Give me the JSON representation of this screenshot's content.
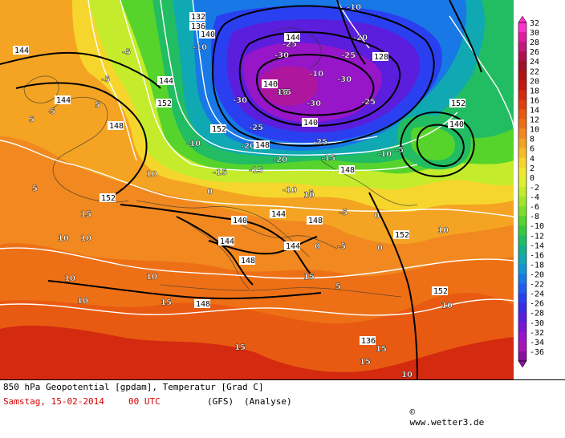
{
  "map": {
    "temperature_labels": [
      "-35",
      "-30",
      "-30",
      "-30",
      "-30",
      "-25",
      "-25",
      "-25",
      "-25",
      "-25",
      "-20",
      "-20",
      "-20",
      "-15",
      "-15",
      "-15",
      "-10",
      "-10",
      "-10",
      "-10",
      "-10",
      "-10",
      "-5",
      "-5",
      "-5",
      "-5",
      "-5",
      "-5",
      "0",
      "0",
      "0",
      "0",
      "5",
      "5",
      "5",
      "5",
      "5",
      "10",
      "10",
      "10",
      "10",
      "10",
      "10",
      "10",
      "10",
      "10",
      "10",
      "15",
      "15",
      "15",
      "15",
      "15",
      "15",
      "15"
    ],
    "geopotential_labels": [
      "128",
      "132",
      "136",
      "136",
      "140",
      "140",
      "140",
      "140",
      "140",
      "144",
      "144",
      "144",
      "144",
      "144",
      "144",
      "144",
      "148",
      "148",
      "148",
      "148",
      "148",
      "148",
      "152",
      "152",
      "152",
      "152",
      "152",
      "152"
    ]
  },
  "legend": {
    "values": [
      "32",
      "30",
      "28",
      "26",
      "24",
      "22",
      "20",
      "18",
      "16",
      "14",
      "12",
      "10",
      "8",
      "6",
      "4",
      "2",
      "0",
      "-2",
      "-4",
      "-6",
      "-8",
      "-10",
      "-12",
      "-14",
      "-16",
      "-18",
      "-20",
      "-22",
      "-24",
      "-26",
      "-28",
      "-30",
      "-32",
      "-34",
      "-36"
    ],
    "colors": [
      "#ff33cc",
      "#e61aa0",
      "#c2187a",
      "#b01050",
      "#a0102a",
      "#b01212",
      "#c21a10",
      "#d42a10",
      "#e04010",
      "#e85a12",
      "#ee7016",
      "#f18820",
      "#f4a422",
      "#f6be26",
      "#f6d62c",
      "#f0e832",
      "#e0ee30",
      "#c4ec2c",
      "#a2e62a",
      "#7ede2a",
      "#56d42c",
      "#38c83e",
      "#22bc62",
      "#14b28a",
      "#10a8b2",
      "#1294d4",
      "#1878e6",
      "#205cf0",
      "#2a40f0",
      "#3a2ae6",
      "#5a1edc",
      "#7a18d2",
      "#9616c8",
      "#a814b8",
      "#8a10a0"
    ]
  },
  "footer": {
    "title": "850 hPa Geopotential [gpdam], Temperatur [Grad C]",
    "date": "Samstag, 15-02-2014",
    "time": "00 UTC",
    "model": "(GFS)",
    "analysis": "(Analyse)",
    "copyright": "www.wetter3.de"
  }
}
